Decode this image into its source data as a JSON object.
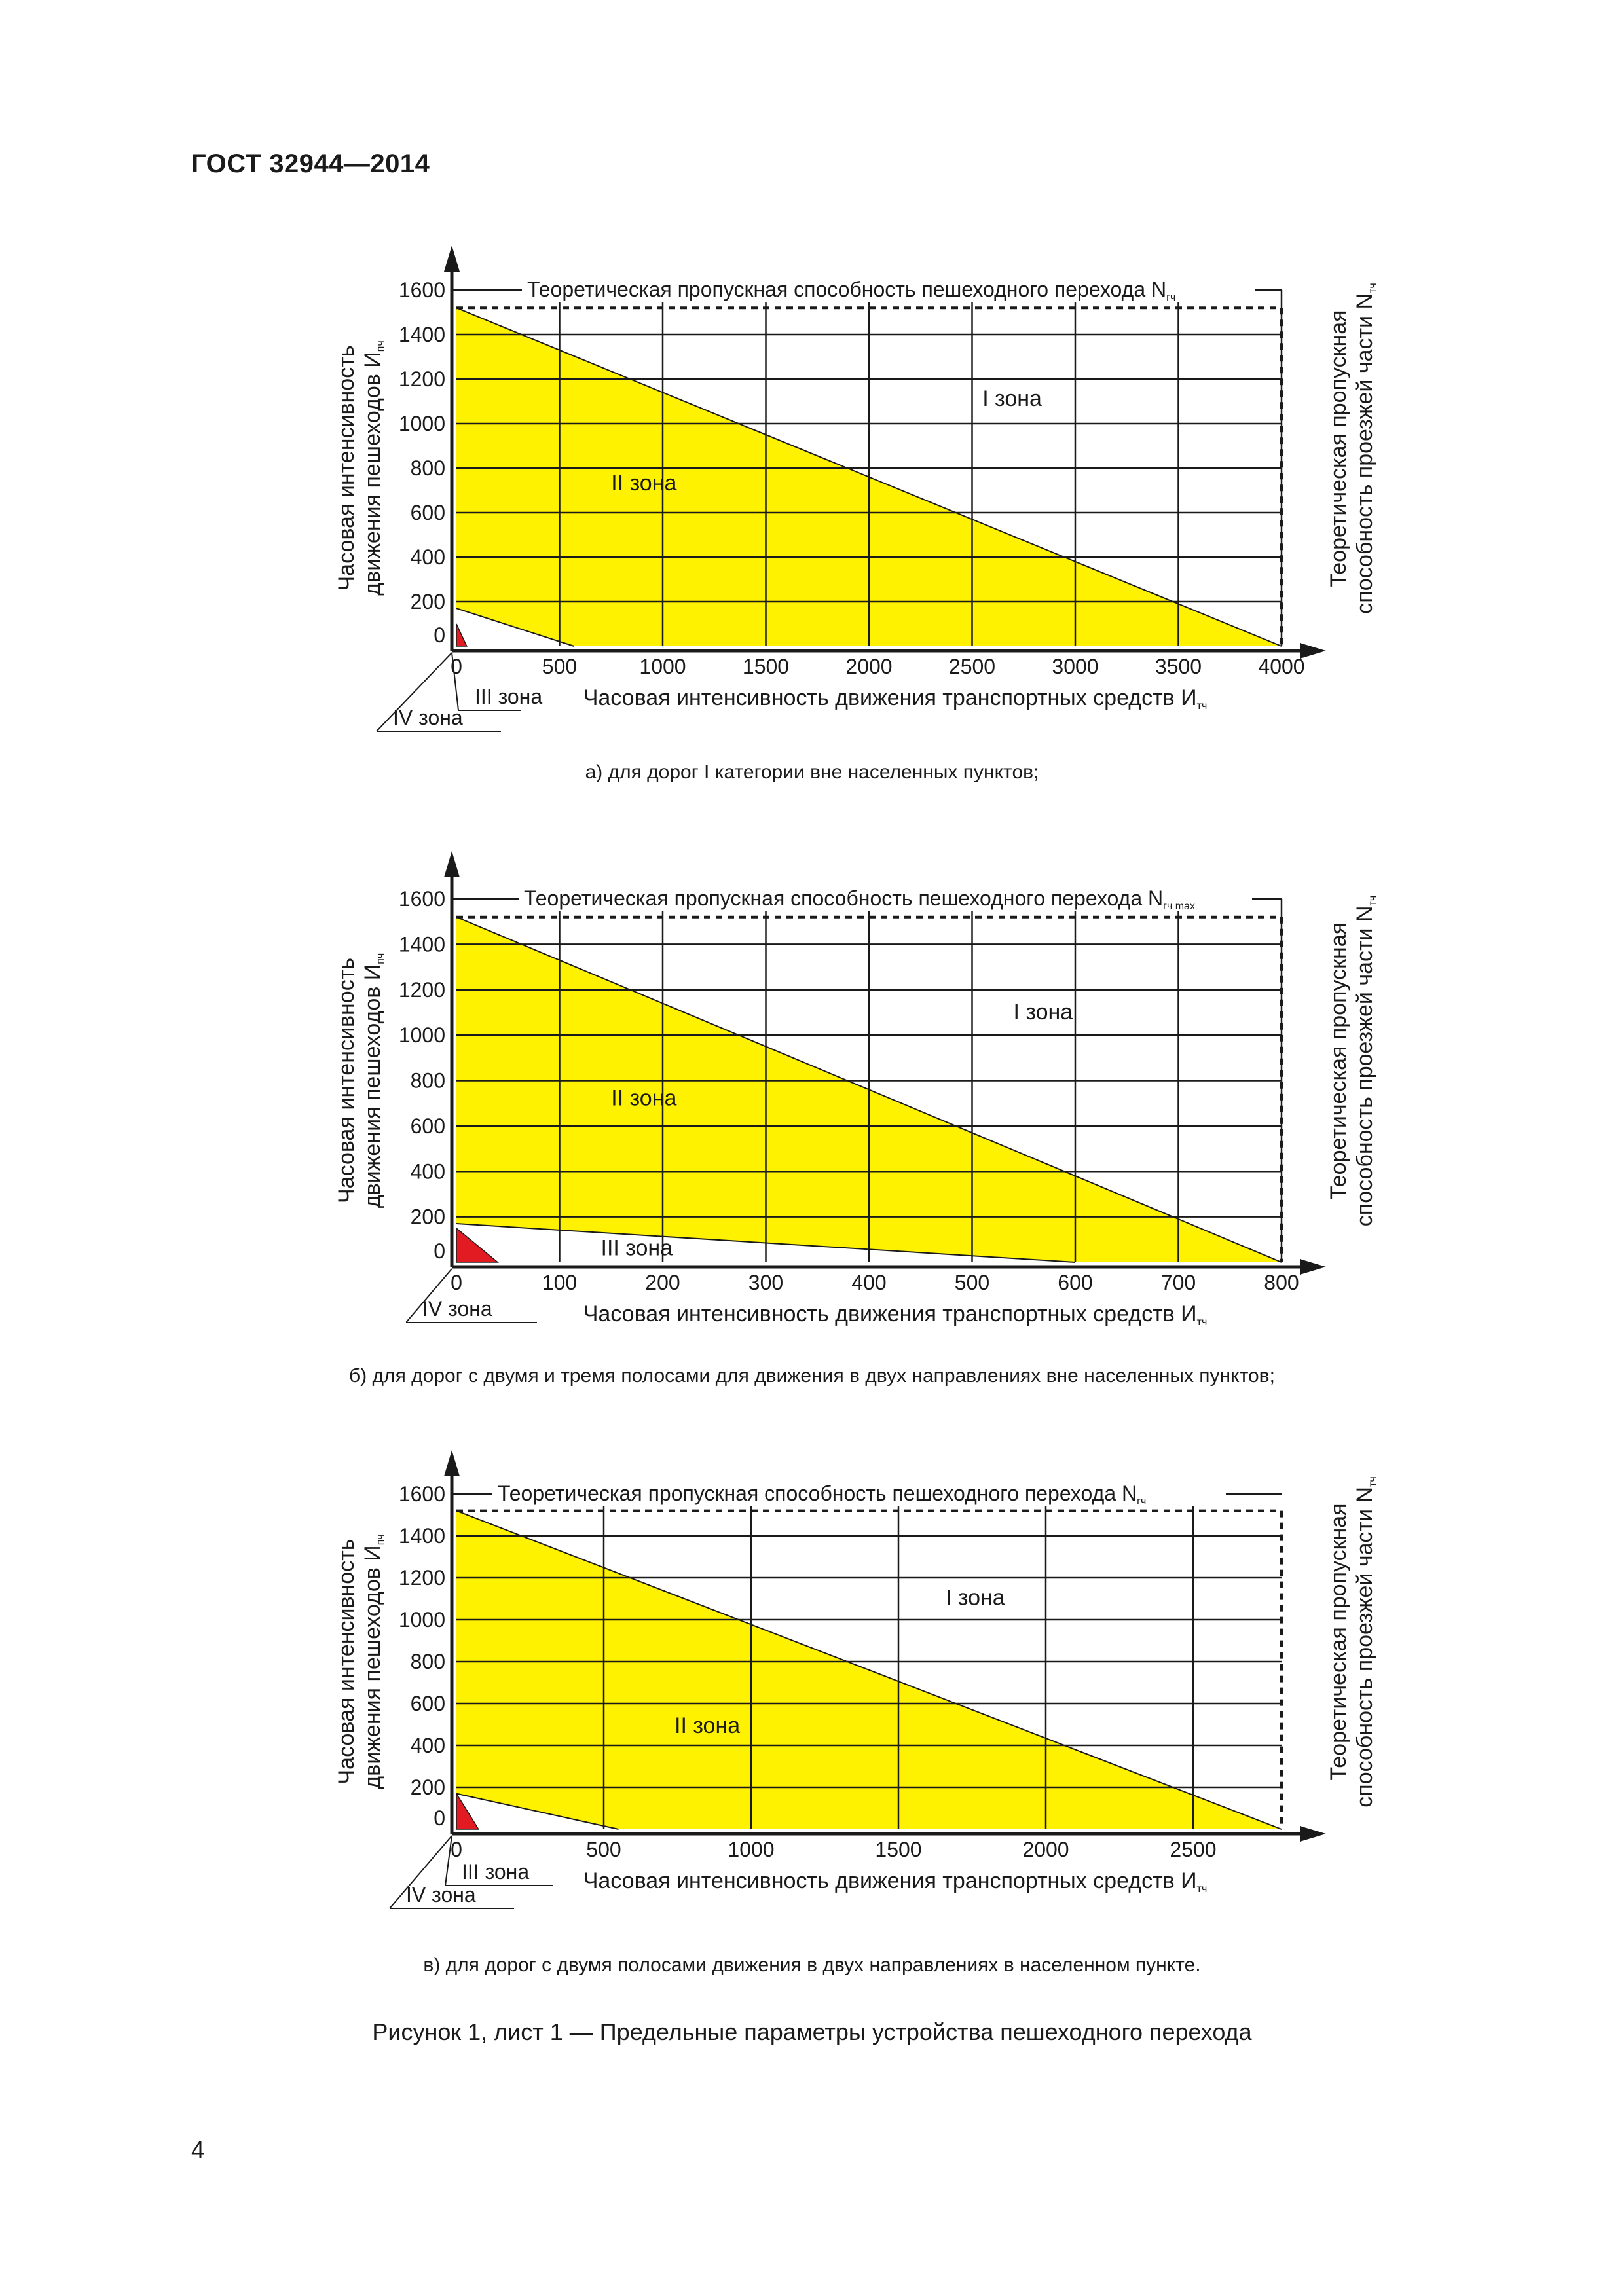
{
  "header": {
    "standard": "ГОСТ 32944—2014"
  },
  "chart_data": [
    {
      "type": "area",
      "caption": "а) для дорог I категории вне населенных пунктов;",
      "title": "Теоретическая пропускная способность пешеходного перехода N",
      "title_sub": "гч",
      "ylabel_line1": "Часовая интенсивность",
      "ylabel_line2": "движения пешеходов И",
      "ylabel_sub": "пч",
      "xlabel": "Часовая интенсивность движения транспортных средств И",
      "xlabel_sub": "тч",
      "right_label_line1": "Теоретическая пропускная",
      "right_label_line2": "способность проезжей части N",
      "right_label_sub": "тч",
      "xlim": [
        0,
        4000
      ],
      "ylim": [
        0,
        1600
      ],
      "x_ticks": [
        "0",
        "500",
        "1000",
        "1500",
        "2000",
        "2500",
        "3000",
        "3500",
        "4000"
      ],
      "x_tick_values": [
        0,
        500,
        1000,
        1500,
        2000,
        2500,
        3000,
        3500,
        4000
      ],
      "y_ticks": [
        "0",
        "200",
        "400",
        "600",
        "800",
        "1000",
        "1200",
        "1400",
        "1600"
      ],
      "y_tick_values": [
        0,
        200,
        400,
        600,
        800,
        1000,
        1200,
        1400,
        1600
      ],
      "grid": true,
      "pedestrian_capacity": 1520,
      "vehicle_capacity": 4000,
      "zone_II_boundary": {
        "x": [
          0,
          4000
        ],
        "y": [
          1520,
          0
        ]
      },
      "zone_III_boundary": {
        "x": [
          0,
          570
        ],
        "y": [
          170,
          0
        ]
      },
      "zone_IV_boundary": {
        "x": [
          0,
          50
        ],
        "y": [
          100,
          0
        ]
      },
      "zones": [
        {
          "label": "I зона",
          "x": 2550,
          "y": 1080
        },
        {
          "label": "II зона",
          "x": 750,
          "y": 700
        },
        {
          "label": "III зона",
          "label_pos": "below-axis",
          "order": 1
        },
        {
          "label": "IV зона",
          "label_pos": "below-axis",
          "order": 2
        }
      ],
      "colors": {
        "zone_II": "#fff200",
        "zone_IV": "#e21b23",
        "grid": "#1a1a1a"
      }
    },
    {
      "type": "area",
      "caption": "б) для дорог с двумя и тремя полосами для движения в двух направлениях вне населенных пунктов;",
      "title": "Теоретическая пропускная способность пешеходного перехода N",
      "title_sub": "гч max",
      "ylabel_line1": "Часовая интенсивность",
      "ylabel_line2": "движения пешеходов И",
      "ylabel_sub": "пч",
      "xlabel": "Часовая интенсивность движения транспортных средств И",
      "xlabel_sub": "тч",
      "right_label_line1": "Теоретическая  пропускная",
      "right_label_line2": "способность проезжей части N",
      "right_label_sub": "тч",
      "xlim": [
        0,
        800
      ],
      "ylim": [
        0,
        1600
      ],
      "x_ticks": [
        "0",
        "100",
        "200",
        "300",
        "400",
        "500",
        "600",
        "700",
        "800"
      ],
      "x_tick_values": [
        0,
        100,
        200,
        300,
        400,
        500,
        600,
        700,
        800
      ],
      "y_ticks": [
        "0",
        "200",
        "400",
        "600",
        "800",
        "1000",
        "1200",
        "1400",
        "1600"
      ],
      "y_tick_values": [
        0,
        200,
        400,
        600,
        800,
        1000,
        1200,
        1400,
        1600
      ],
      "grid": true,
      "pedestrian_capacity": 1520,
      "vehicle_capacity": 800,
      "zone_II_boundary": {
        "x": [
          0,
          800
        ],
        "y": [
          1520,
          0
        ]
      },
      "zone_III_boundary": {
        "x": [
          0,
          600
        ],
        "y": [
          170,
          0
        ]
      },
      "zone_IV_boundary": {
        "x": [
          0,
          40
        ],
        "y": [
          150,
          0
        ]
      },
      "zones": [
        {
          "label": "I зона",
          "x": 540,
          "y": 1070
        },
        {
          "label": "II зона",
          "x": 150,
          "y": 690
        },
        {
          "label": "III зона",
          "x": 140,
          "y": 30
        },
        {
          "label": "IV зона",
          "label_pos": "below-axis",
          "order": 1
        }
      ],
      "colors": {
        "zone_II": "#fff200",
        "zone_IV": "#e21b23",
        "grid": "#1a1a1a"
      }
    },
    {
      "type": "area",
      "caption": "в) для дорог с двумя полосами движения в двух направлениях в населенном пункте.",
      "title": "Теоретическая пропускная способность пешеходного перехода N",
      "title_sub": "гч",
      "ylabel_line1": "Часовая интенсивность",
      "ylabel_line2": "движения пешеходов И",
      "ylabel_sub": "пч",
      "xlabel": "Часовая интенсивность движения транспортных средств И",
      "xlabel_sub": "тч",
      "right_label_line1": "Теоретическая пропускная",
      "right_label_line2": "способность проезжей части N",
      "right_label_sub": "тч",
      "xlim": [
        0,
        2800
      ],
      "ylim": [
        0,
        1600
      ],
      "x_ticks": [
        "0",
        "500",
        "1000",
        "1500",
        "2000",
        "2500"
      ],
      "x_tick_values": [
        0,
        500,
        1000,
        1500,
        2000,
        2500
      ],
      "y_ticks": [
        "0",
        "200",
        "400",
        "600",
        "800",
        "1000",
        "1200",
        "1400",
        "1600"
      ],
      "y_tick_values": [
        0,
        200,
        400,
        600,
        800,
        1000,
        1200,
        1400,
        1600
      ],
      "grid": true,
      "pedestrian_capacity": 1520,
      "vehicle_capacity": 2800,
      "zone_II_boundary": {
        "x": [
          0,
          2800
        ],
        "y": [
          1520,
          0
        ]
      },
      "zone_III_boundary": {
        "x": [
          0,
          550
        ],
        "y": [
          170,
          0
        ]
      },
      "zone_IV_boundary": {
        "x": [
          0,
          75
        ],
        "y": [
          170,
          0
        ]
      },
      "zones": [
        {
          "label": "I зона",
          "x": 1660,
          "y": 1070
        },
        {
          "label": "II зона",
          "x": 740,
          "y": 460
        },
        {
          "label": "III зона",
          "label_pos": "below-axis",
          "order": 1
        },
        {
          "label": "IV зона",
          "label_pos": "below-axis",
          "order": 2
        }
      ],
      "colors": {
        "zone_II": "#fff200",
        "zone_IV": "#e21b23",
        "grid": "#1a1a1a"
      }
    }
  ],
  "figure_caption": "Рисунок 1, лист 1 — Предельные параметры устройства пешеходного перехода",
  "page_number": "4"
}
